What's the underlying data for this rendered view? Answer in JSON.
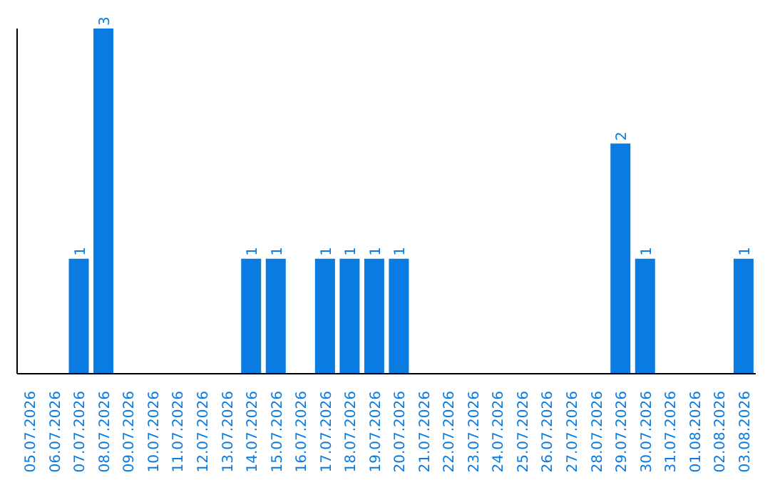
{
  "chart_data": {
    "type": "bar",
    "categories": [
      "05.07.2026",
      "06.07.2026",
      "07.07.2026",
      "08.07.2026",
      "09.07.2026",
      "10.07.2026",
      "11.07.2026",
      "12.07.2026",
      "13.07.2026",
      "14.07.2026",
      "15.07.2026",
      "16.07.2026",
      "17.07.2026",
      "18.07.2026",
      "19.07.2026",
      "20.07.2026",
      "21.07.2026",
      "22.07.2026",
      "23.07.2026",
      "24.07.2026",
      "25.07.2026",
      "26.07.2026",
      "27.07.2026",
      "28.07.2026",
      "29.07.2026",
      "30.07.2026",
      "31.07.2026",
      "01.08.2026",
      "02.08.2026",
      "03.08.2026"
    ],
    "values": [
      0,
      0,
      1,
      3,
      0,
      0,
      0,
      0,
      0,
      1,
      1,
      0,
      1,
      1,
      1,
      1,
      0,
      0,
      0,
      0,
      0,
      0,
      0,
      0,
      2,
      1,
      0,
      0,
      0,
      1
    ],
    "value_labels": [
      null,
      null,
      "1",
      "3",
      null,
      null,
      null,
      null,
      null,
      "1",
      "1",
      null,
      "1",
      "1",
      "1",
      "1",
      null,
      null,
      null,
      null,
      null,
      null,
      null,
      null,
      "2",
      "1",
      null,
      null,
      null,
      "1"
    ],
    "color": "#0a7be0",
    "ylim": [
      0,
      3
    ],
    "tick_labels": "x"
  }
}
